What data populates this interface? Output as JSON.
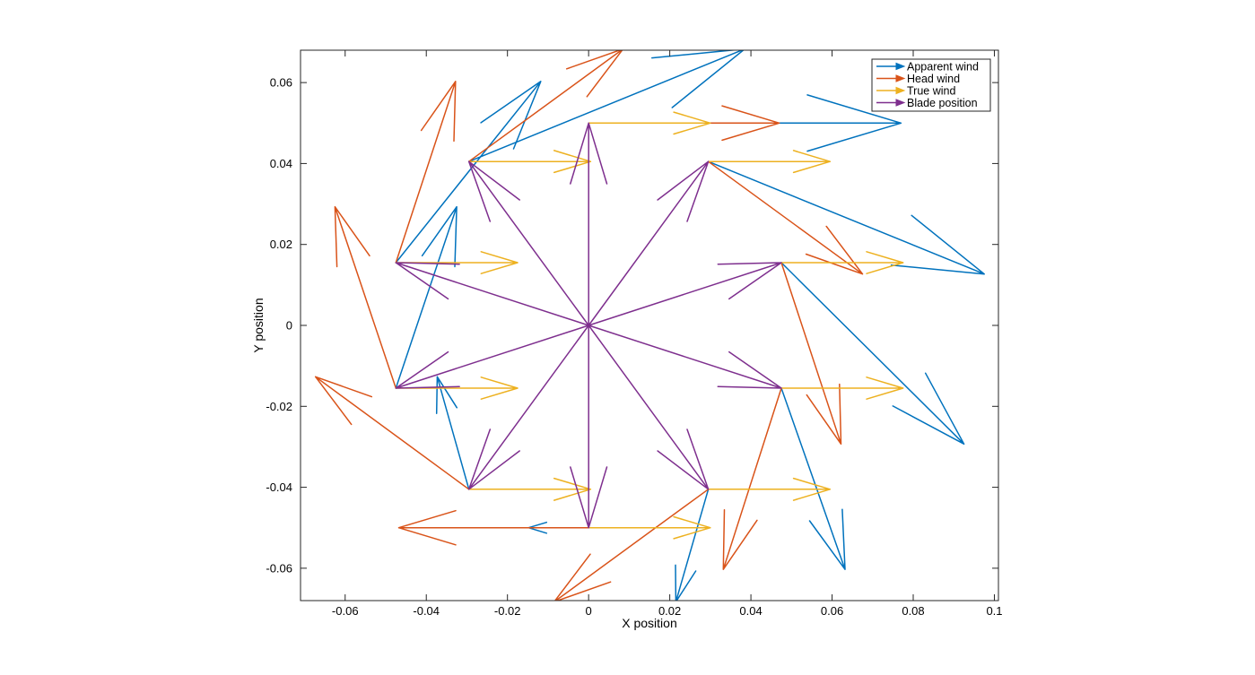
{
  "chart_data": {
    "type": "quiver",
    "xlabel": "X position",
    "ylabel": "Y position",
    "xlim": [
      -0.071,
      0.101
    ],
    "ylim": [
      -0.068,
      0.068
    ],
    "xticks": [
      -0.06,
      -0.04,
      -0.02,
      0,
      0.02,
      0.04,
      0.06,
      0.08,
      0.1
    ],
    "xtick_labels": [
      "-0.06",
      "-0.04",
      "-0.02",
      "0",
      "0.02",
      "0.04",
      "0.06",
      "0.08",
      "0.1"
    ],
    "yticks": [
      -0.06,
      -0.04,
      -0.02,
      0,
      0.02,
      0.04,
      0.06
    ],
    "ytick_labels": [
      "-0.06",
      "-0.04",
      "-0.02",
      "0",
      "0.02",
      "0.04",
      "0.06"
    ],
    "legend_position": "top-right",
    "series": [
      {
        "name": "Apparent wind",
        "color": "#0072BD",
        "vectors": [
          [
            0,
            0.05,
            0.077,
            0.05
          ],
          [
            0.0295,
            0.0405,
            0.0975,
            0.0127
          ],
          [
            0.0475,
            0.0155,
            0.0925,
            -0.0293
          ],
          [
            0.0475,
            -0.0155,
            0.0632,
            -0.0603
          ],
          [
            0.0295,
            -0.0405,
            0.0215,
            -0.0683
          ],
          [
            0,
            -0.05,
            -0.0148,
            -0.05
          ],
          [
            -0.0295,
            -0.0405,
            -0.0373,
            -0.0127
          ],
          [
            -0.0475,
            -0.0155,
            -0.0325,
            0.0293
          ],
          [
            -0.0475,
            0.0155,
            -0.0118,
            0.0603
          ],
          [
            -0.0295,
            0.0405,
            0.0385,
            0.0683
          ]
        ]
      },
      {
        "name": "Head wind",
        "color": "#D95319",
        "vectors": [
          [
            0,
            0.05,
            0.047,
            0.05
          ],
          [
            0.0295,
            0.0405,
            0.0675,
            0.0127
          ],
          [
            0.0475,
            0.0155,
            0.0622,
            -0.0293
          ],
          [
            0.0475,
            -0.0155,
            0.0332,
            -0.0603
          ],
          [
            0.0295,
            -0.0405,
            -0.0085,
            -0.0683
          ],
          [
            0,
            -0.05,
            -0.0468,
            -0.05
          ],
          [
            -0.0295,
            -0.0405,
            -0.0673,
            -0.0127
          ],
          [
            -0.0475,
            -0.0155,
            -0.0625,
            0.0293
          ],
          [
            -0.0475,
            0.0155,
            -0.0328,
            0.0603
          ],
          [
            -0.0295,
            0.0405,
            0.0085,
            0.0683
          ]
        ]
      },
      {
        "name": "True wind",
        "color": "#EDB120",
        "vectors": [
          [
            0,
            0.05,
            0.03,
            0.05
          ],
          [
            0.0295,
            0.0405,
            0.0595,
            0.0405
          ],
          [
            0.0475,
            0.0155,
            0.0775,
            0.0155
          ],
          [
            0.0475,
            -0.0155,
            0.0775,
            -0.0155
          ],
          [
            0.0295,
            -0.0405,
            0.0595,
            -0.0405
          ],
          [
            0,
            -0.05,
            0.03,
            -0.05
          ],
          [
            -0.0295,
            -0.0405,
            0.0005,
            -0.0405
          ],
          [
            -0.0475,
            -0.0155,
            -0.0175,
            -0.0155
          ],
          [
            -0.0475,
            0.0155,
            -0.0175,
            0.0155
          ],
          [
            -0.0295,
            0.0405,
            0.0005,
            0.0405
          ]
        ]
      },
      {
        "name": "Blade position",
        "color": "#7E2F8E",
        "vectors": [
          [
            0,
            0,
            0,
            0.05
          ],
          [
            0,
            0,
            0.0295,
            0.0405
          ],
          [
            0,
            0,
            0.0475,
            0.0155
          ],
          [
            0,
            0,
            0.0475,
            -0.0155
          ],
          [
            0,
            0,
            0.0295,
            -0.0405
          ],
          [
            0,
            0,
            0,
            -0.05
          ],
          [
            0,
            0,
            -0.0295,
            -0.0405
          ],
          [
            0,
            0,
            -0.0475,
            -0.0155
          ],
          [
            0,
            0,
            -0.0475,
            0.0155
          ],
          [
            0,
            0,
            -0.0295,
            0.0405
          ]
        ]
      }
    ]
  }
}
